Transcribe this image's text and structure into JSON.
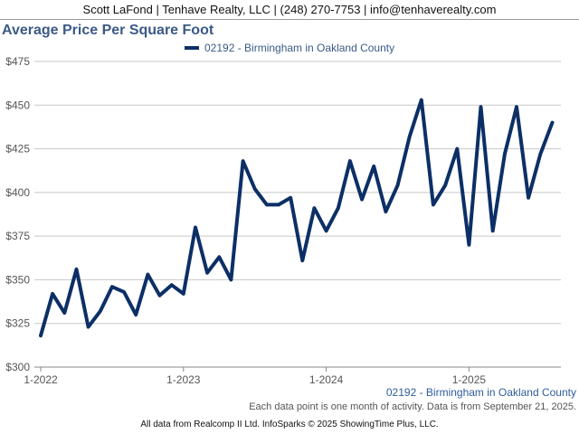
{
  "header": {
    "agent_line": "Scott LaFond | Tenhave Realty, LLC | (248) 270-7753 | info@tenhaverealty.com"
  },
  "footer": {
    "area_label": "02192 - Birmingham in Oakland County",
    "note": "Each data point is one month of activity. Data is from September 21, 2025.",
    "copyright": "All data from Realcomp II Ltd. InfoSparks © 2025 ShowingTime Plus, LLC."
  },
  "colors": {
    "series": "#0c2f66",
    "title": "#3b5a86",
    "grid": "#c8c8c8"
  },
  "chart_data": {
    "type": "line",
    "title": "Average Price Per Square Foot",
    "xlabel": "",
    "ylabel": "",
    "x_tick_labels": [
      "1-2022",
      "1-2023",
      "1-2024",
      "1-2025"
    ],
    "y_tick_labels": [
      "$300",
      "$325",
      "$350",
      "$375",
      "$400",
      "$425",
      "$450",
      "$475"
    ],
    "ylim": [
      300,
      475
    ],
    "grid": true,
    "legend_position": "top-center",
    "series": [
      {
        "name": "02192 - Birmingham in Oakland County",
        "color": "#0c2f66",
        "x": [
          "2022-01",
          "2022-02",
          "2022-03",
          "2022-04",
          "2022-05",
          "2022-06",
          "2022-07",
          "2022-08",
          "2022-09",
          "2022-10",
          "2022-11",
          "2022-12",
          "2023-01",
          "2023-02",
          "2023-03",
          "2023-04",
          "2023-05",
          "2023-06",
          "2023-07",
          "2023-08",
          "2023-09",
          "2023-10",
          "2023-11",
          "2023-12",
          "2024-01",
          "2024-02",
          "2024-03",
          "2024-04",
          "2024-05",
          "2024-06",
          "2024-07",
          "2024-08",
          "2024-09",
          "2024-10",
          "2024-11",
          "2024-12",
          "2025-01",
          "2025-02",
          "2025-03",
          "2025-04",
          "2025-05",
          "2025-06",
          "2025-07",
          "2025-08"
        ],
        "values": [
          318,
          342,
          331,
          356,
          323,
          332,
          346,
          343,
          330,
          353,
          341,
          347,
          342,
          380,
          354,
          363,
          350,
          418,
          402,
          393,
          393,
          397,
          361,
          391,
          378,
          391,
          418,
          396,
          415,
          389,
          404,
          432,
          453,
          393,
          404,
          425,
          370,
          449,
          378,
          422,
          449,
          397,
          422,
          440
        ]
      }
    ]
  }
}
